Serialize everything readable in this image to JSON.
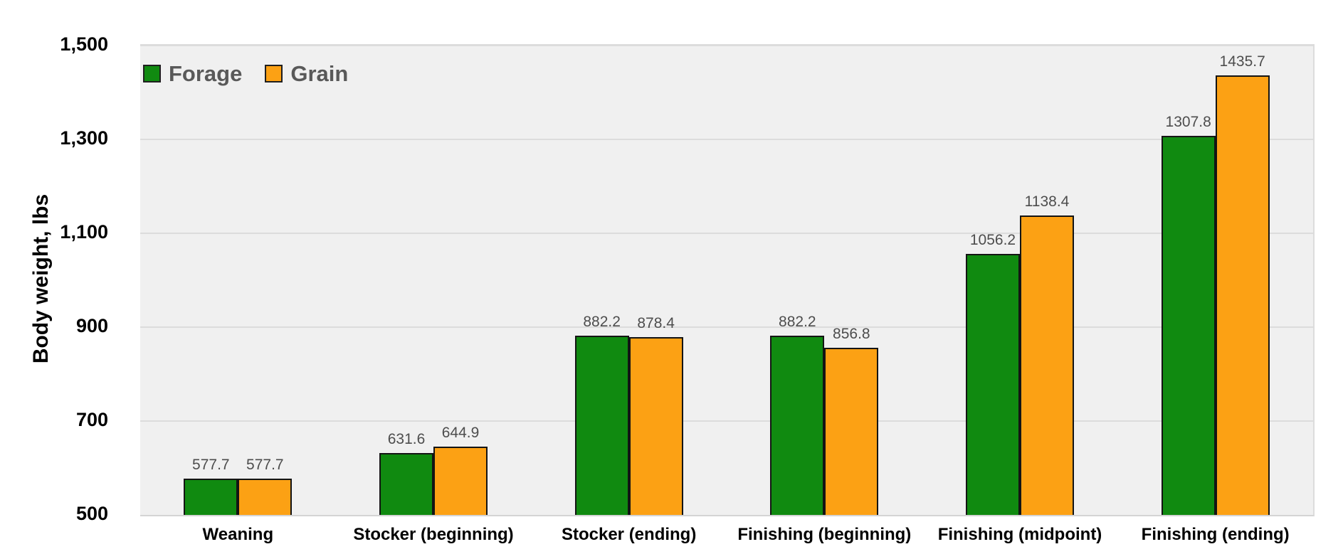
{
  "chart_data": {
    "type": "bar",
    "title": "",
    "ylabel": "Body weight, lbs",
    "xlabel": "",
    "ylim": [
      500,
      1500
    ],
    "ytick_step": 200,
    "ytick_labels": [
      "500",
      "700",
      "900",
      "1,100",
      "1,300",
      "1,500"
    ],
    "grid": true,
    "legend_position": "top-left",
    "categories": [
      "Weaning",
      "Stocker (beginning)",
      "Stocker (ending)",
      "Finishing (beginning)",
      "Finishing (midpoint)",
      "Finishing (ending)"
    ],
    "series": [
      {
        "name": "Forage",
        "color": "#108a10",
        "values": [
          577.7,
          631.6,
          882.2,
          882.2,
          1056.2,
          1307.8
        ]
      },
      {
        "name": "Grain",
        "color": "#fca114",
        "values": [
          577.7,
          644.9,
          878.4,
          856.8,
          1138.4,
          1435.7
        ]
      }
    ],
    "colors": {
      "plot_background": "#f0f0f0",
      "gridline": "#dcdcdc",
      "bar_border": "#141414",
      "value_label_text": "#4d4d4d",
      "legend_text": "#595959",
      "axis_text": "#000000"
    }
  }
}
